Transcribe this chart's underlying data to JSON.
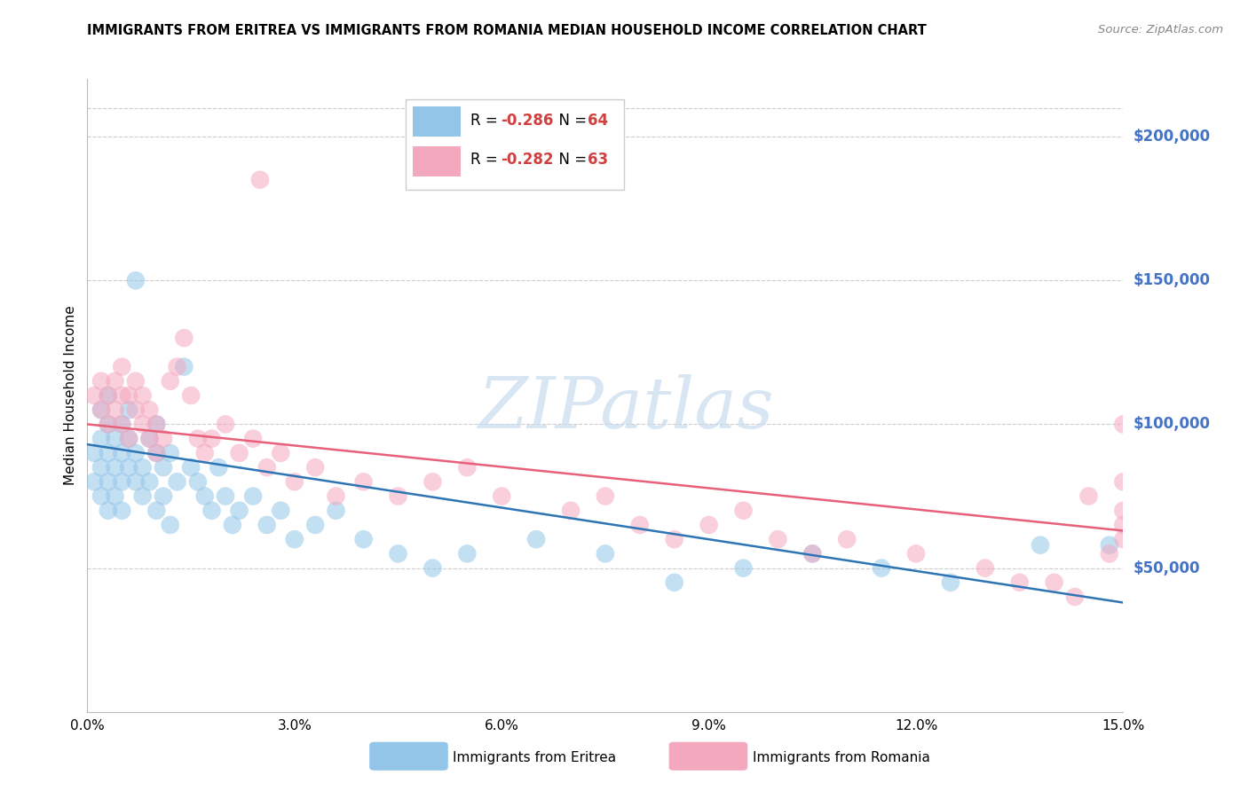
{
  "title": "IMMIGRANTS FROM ERITREA VS IMMIGRANTS FROM ROMANIA MEDIAN HOUSEHOLD INCOME CORRELATION CHART",
  "source": "Source: ZipAtlas.com",
  "ylabel": "Median Household Income",
  "color_eritrea": "#92C5E8",
  "color_romania": "#F4A8BE",
  "color_eritrea_line": "#2E75B6",
  "color_romania_line": "#E8607A",
  "color_ytick_labels": "#4472C4",
  "color_grid": "#CCCCCC",
  "xlim": [
    0.0,
    0.15
  ],
  "ylim": [
    0,
    220000
  ],
  "yticks": [
    50000,
    100000,
    150000,
    200000
  ],
  "ytick_labels": [
    "$50,000",
    "$100,000",
    "$150,000",
    "$200,000"
  ],
  "xticks": [
    0.0,
    0.03,
    0.06,
    0.09,
    0.12,
    0.15
  ],
  "xtick_labels": [
    "0.0%",
    "3.0%",
    "6.0%",
    "9.0%",
    "12.0%",
    "15.0%"
  ],
  "eritrea_trend": [
    93000,
    38000
  ],
  "romania_trend": [
    100000,
    63000
  ],
  "watermark_text": "ZIPatlas",
  "watermark_color": "#C8DCEE",
  "legend_r_eritrea": "-0.286",
  "legend_n_eritrea": "64",
  "legend_r_romania": "-0.282",
  "legend_n_romania": "63",
  "bottom_label_eritrea": "Immigrants from Eritrea",
  "bottom_label_romania": "Immigrants from Romania",
  "scatter_size": 220,
  "scatter_alpha": 0.55,
  "eritrea_x": [
    0.001,
    0.001,
    0.002,
    0.002,
    0.002,
    0.002,
    0.003,
    0.003,
    0.003,
    0.003,
    0.003,
    0.004,
    0.004,
    0.004,
    0.005,
    0.005,
    0.005,
    0.005,
    0.006,
    0.006,
    0.006,
    0.007,
    0.007,
    0.007,
    0.008,
    0.008,
    0.009,
    0.009,
    0.01,
    0.01,
    0.01,
    0.011,
    0.011,
    0.012,
    0.012,
    0.013,
    0.014,
    0.015,
    0.016,
    0.017,
    0.018,
    0.019,
    0.02,
    0.021,
    0.022,
    0.024,
    0.026,
    0.028,
    0.03,
    0.033,
    0.036,
    0.04,
    0.045,
    0.05,
    0.055,
    0.065,
    0.075,
    0.085,
    0.095,
    0.105,
    0.115,
    0.125,
    0.138,
    0.148
  ],
  "eritrea_y": [
    90000,
    80000,
    95000,
    85000,
    75000,
    105000,
    100000,
    90000,
    80000,
    110000,
    70000,
    95000,
    85000,
    75000,
    90000,
    100000,
    80000,
    70000,
    95000,
    85000,
    105000,
    90000,
    80000,
    150000,
    85000,
    75000,
    95000,
    80000,
    90000,
    100000,
    70000,
    85000,
    75000,
    90000,
    65000,
    80000,
    120000,
    85000,
    80000,
    75000,
    70000,
    85000,
    75000,
    65000,
    70000,
    75000,
    65000,
    70000,
    60000,
    65000,
    70000,
    60000,
    55000,
    50000,
    55000,
    60000,
    55000,
    45000,
    50000,
    55000,
    50000,
    45000,
    58000,
    58000
  ],
  "romania_x": [
    0.001,
    0.002,
    0.002,
    0.003,
    0.003,
    0.004,
    0.004,
    0.005,
    0.005,
    0.005,
    0.006,
    0.006,
    0.007,
    0.007,
    0.008,
    0.008,
    0.009,
    0.009,
    0.01,
    0.01,
    0.011,
    0.012,
    0.013,
    0.014,
    0.015,
    0.016,
    0.017,
    0.018,
    0.02,
    0.022,
    0.024,
    0.026,
    0.028,
    0.03,
    0.033,
    0.036,
    0.04,
    0.045,
    0.05,
    0.055,
    0.06,
    0.025,
    0.07,
    0.075,
    0.08,
    0.085,
    0.09,
    0.095,
    0.1,
    0.105,
    0.11,
    0.12,
    0.13,
    0.135,
    0.14,
    0.143,
    0.145,
    0.148,
    0.15,
    0.15,
    0.15,
    0.15,
    0.15
  ],
  "romania_y": [
    110000,
    115000,
    105000,
    110000,
    100000,
    115000,
    105000,
    120000,
    110000,
    100000,
    110000,
    95000,
    105000,
    115000,
    100000,
    110000,
    95000,
    105000,
    100000,
    90000,
    95000,
    115000,
    120000,
    130000,
    110000,
    95000,
    90000,
    95000,
    100000,
    90000,
    95000,
    85000,
    90000,
    80000,
    85000,
    75000,
    80000,
    75000,
    80000,
    85000,
    75000,
    185000,
    70000,
    75000,
    65000,
    60000,
    65000,
    70000,
    60000,
    55000,
    60000,
    55000,
    50000,
    45000,
    45000,
    40000,
    75000,
    55000,
    100000,
    80000,
    70000,
    65000,
    60000
  ]
}
